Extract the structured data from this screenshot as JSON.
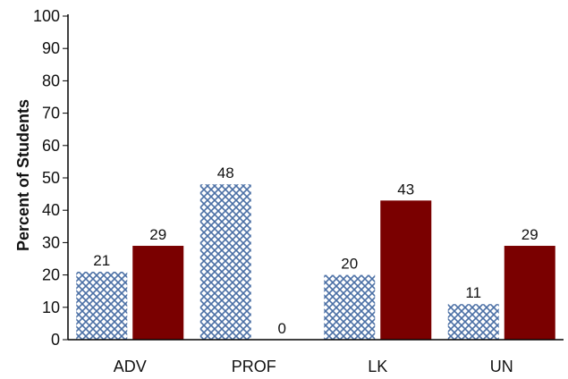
{
  "chart_data": {
    "type": "bar",
    "title": "",
    "xlabel": "",
    "ylabel": "Percent of Students",
    "ylim": [
      0,
      100
    ],
    "yticks": [
      0,
      10,
      20,
      30,
      40,
      50,
      60,
      70,
      80,
      90,
      100
    ],
    "categories": [
      "ADV",
      "PROF",
      "LK",
      "UN"
    ],
    "series": [
      {
        "values": [
          21,
          48,
          20,
          11
        ],
        "color": "#4a6fa5",
        "pattern": "crosshatch"
      },
      {
        "values": [
          29,
          0,
          43,
          29
        ],
        "color": "#7a0000",
        "pattern": "solid"
      }
    ],
    "data_labels": true,
    "grid": false,
    "legend": "none"
  }
}
